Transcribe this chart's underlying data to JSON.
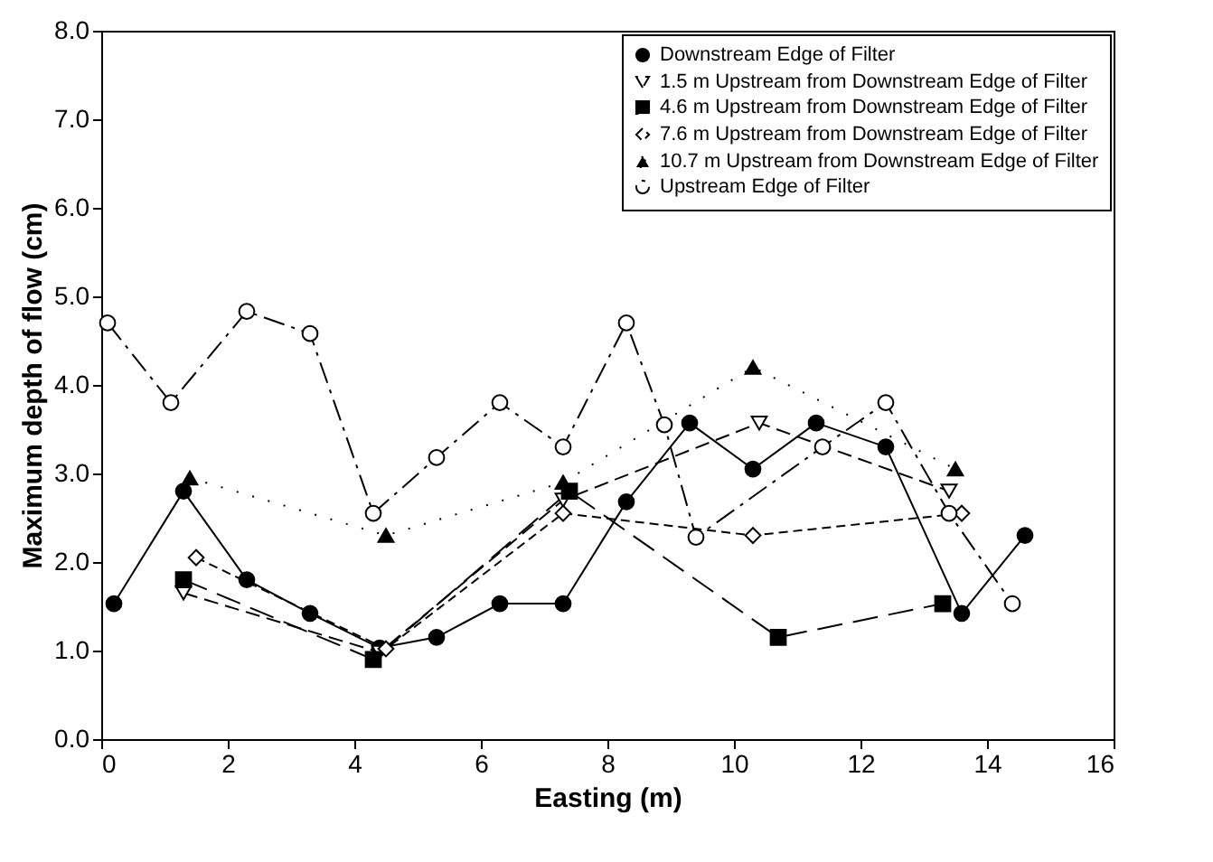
{
  "chart_data": {
    "type": "line",
    "xlabel": "Easting (m)",
    "ylabel": "Maximum depth of flow (cm)",
    "xlim": [
      0,
      16
    ],
    "xticks": [
      0,
      2,
      4,
      6,
      8,
      10,
      12,
      14,
      16
    ],
    "ylim": [
      0,
      8
    ],
    "yticks": [
      {
        "value": 0,
        "label": "0.0"
      },
      {
        "value": 1,
        "label": "1.0"
      },
      {
        "value": 2,
        "label": "2.0"
      },
      {
        "value": 3,
        "label": "3.0"
      },
      {
        "value": 4,
        "label": "4.0"
      },
      {
        "value": 5,
        "label": "5.0"
      },
      {
        "value": 6,
        "label": "6.0"
      },
      {
        "value": 7,
        "label": "7.0"
      },
      {
        "value": 8,
        "label": "8.0"
      }
    ],
    "grid": false,
    "legend": "top right",
    "series": [
      {
        "name": "Downstream Edge of Filter",
        "color": "#000000",
        "marker": "circle",
        "line_style": "solid",
        "x": [
          0.2,
          1.3,
          2.3,
          3.3,
          4.4,
          5.3,
          6.3,
          7.3,
          8.3,
          9.3,
          10.3,
          11.3,
          12.4,
          13.6,
          14.6
        ],
        "values": [
          1.53,
          2.8,
          1.8,
          1.42,
          1.03,
          1.15,
          1.53,
          1.53,
          2.68,
          3.57,
          3.05,
          3.57,
          3.3,
          1.42,
          2.3
        ]
      },
      {
        "name": "1.5 m Upstream from Downstream Edge of Filter",
        "color": "#000000",
        "marker": "triangle-down-open",
        "line_style": "dashed",
        "x": [
          1.3,
          4.4,
          7.3,
          10.4,
          13.4
        ],
        "values": [
          1.65,
          0.98,
          2.7,
          3.57,
          2.8
        ]
      },
      {
        "name": "4.6 m Upstream from Downstream Edge of Filter",
        "color": "#000000",
        "marker": "square",
        "line_style": "dashed",
        "x": [
          1.3,
          4.3,
          7.4,
          10.7,
          13.3
        ],
        "values": [
          1.8,
          0.9,
          2.8,
          1.15,
          1.53
        ]
      },
      {
        "name": "7.6 m Upstream from Downstream Edge of Filter",
        "color": "#000000",
        "marker": "diamond-open",
        "line_style": "dashed",
        "x": [
          1.5,
          4.5,
          7.3,
          10.3,
          13.6
        ],
        "values": [
          2.05,
          1.02,
          2.55,
          2.3,
          2.55
        ]
      },
      {
        "name": "10.7 m Upstream from Downstream Edge of Filter",
        "color": "#000000",
        "marker": "triangle",
        "line_style": "dotted",
        "x": [
          1.4,
          4.5,
          7.3,
          10.3,
          13.5
        ],
        "values": [
          2.95,
          2.3,
          2.9,
          4.2,
          3.05
        ]
      },
      {
        "name": "Upstream Edge of Filter",
        "color": "#000000",
        "marker": "circle-open",
        "line_style": "dashed",
        "x": [
          0.1,
          1.1,
          2.3,
          3.3,
          4.3,
          5.3,
          6.3,
          7.3,
          8.3,
          8.9,
          9.4,
          11.4,
          12.4,
          13.4,
          14.4
        ],
        "values": [
          4.7,
          3.8,
          4.83,
          4.58,
          2.55,
          3.18,
          3.8,
          3.3,
          4.7,
          3.55,
          2.28,
          3.3,
          3.8,
          2.55,
          1.53
        ]
      }
    ]
  }
}
